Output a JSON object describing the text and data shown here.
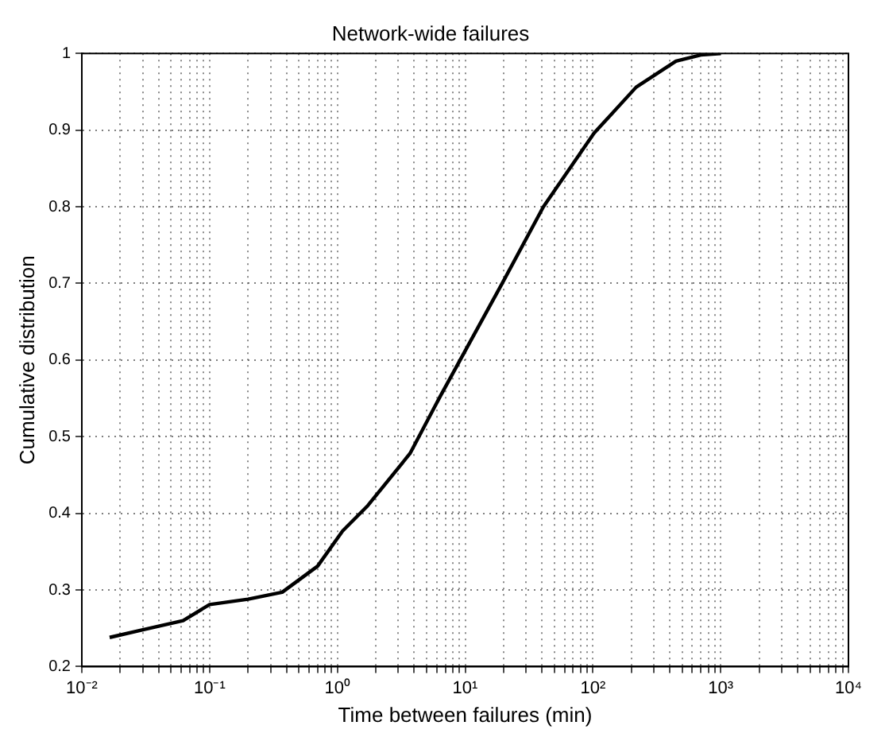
{
  "chart_data": {
    "type": "line",
    "title": "Network-wide failures",
    "xlabel": "Time between failures (min)",
    "ylabel": "Cumulative distribution",
    "log": "x",
    "x": [
      0.0165,
      0.03,
      0.062,
      0.1,
      0.2,
      0.37,
      0.7,
      1.1,
      1.73,
      3.7,
      6.4,
      19.5,
      41,
      102,
      218,
      447,
      700,
      1000
    ],
    "series": [
      {
        "color": "#000000",
        "values": [
          0.238,
          0.248,
          0.26,
          0.281,
          0.288,
          0.297,
          0.331,
          0.377,
          0.41,
          0.478,
          0.553,
          0.7,
          0.8,
          0.896,
          0.956,
          0.99,
          0.998,
          1.0
        ]
      }
    ],
    "xlim": [
      0.01,
      10000
    ],
    "xticks": [
      {
        "value": 0.01,
        "label": "10⁻²"
      },
      {
        "value": 0.1,
        "label": "10⁻¹"
      },
      {
        "value": 1,
        "label": "10⁰"
      },
      {
        "value": 10,
        "label": "10¹"
      },
      {
        "value": 100,
        "label": "10²"
      },
      {
        "value": 1000,
        "label": "10³"
      },
      {
        "value": 10000,
        "label": "10⁴"
      }
    ],
    "ylim": [
      0.2,
      1
    ],
    "yticks": [
      0.2,
      0.3,
      0.4,
      0.5,
      0.6,
      0.7,
      0.8,
      0.9,
      1
    ],
    "grid": true,
    "legend": false,
    "marker": "none",
    "line_style": "solid"
  }
}
